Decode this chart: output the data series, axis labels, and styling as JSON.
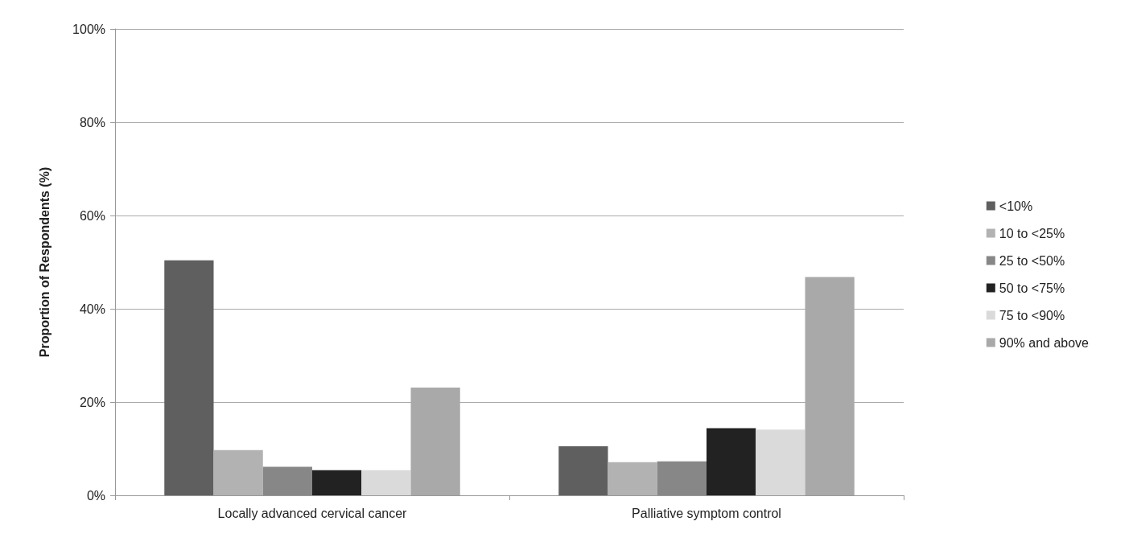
{
  "chart_data": {
    "type": "bar",
    "ylabel": "Proportion of Respondents (%)",
    "categories": [
      "Locally advanced cervical cancer",
      "Palliative symptom control"
    ],
    "series": [
      {
        "name": "<10%",
        "color": "#5f5f5f",
        "values": [
          50.4,
          10.5
        ]
      },
      {
        "name": "10 to <25%",
        "color": "#b2b2b2",
        "values": [
          9.7,
          7.1
        ]
      },
      {
        "name": "25 to <50%",
        "color": "#878787",
        "values": [
          6.1,
          7.3
        ]
      },
      {
        "name": "50 to <75%",
        "color": "#222222",
        "values": [
          5.4,
          14.4
        ]
      },
      {
        "name": "75 to <90%",
        "color": "#dadada",
        "values": [
          5.4,
          14.1
        ]
      },
      {
        "name": "90% and above",
        "color": "#a9a9a9",
        "values": [
          23.1,
          46.8
        ]
      }
    ],
    "ylim": [
      0,
      100
    ],
    "yticks": [
      {
        "value": 0,
        "label": "0%"
      },
      {
        "value": 20,
        "label": "20%"
      },
      {
        "value": 40,
        "label": "40%"
      },
      {
        "value": 60,
        "label": "60%"
      },
      {
        "value": 80,
        "label": "80%"
      },
      {
        "value": 100,
        "label": "100%"
      }
    ],
    "grid": "y",
    "legend": "right"
  }
}
